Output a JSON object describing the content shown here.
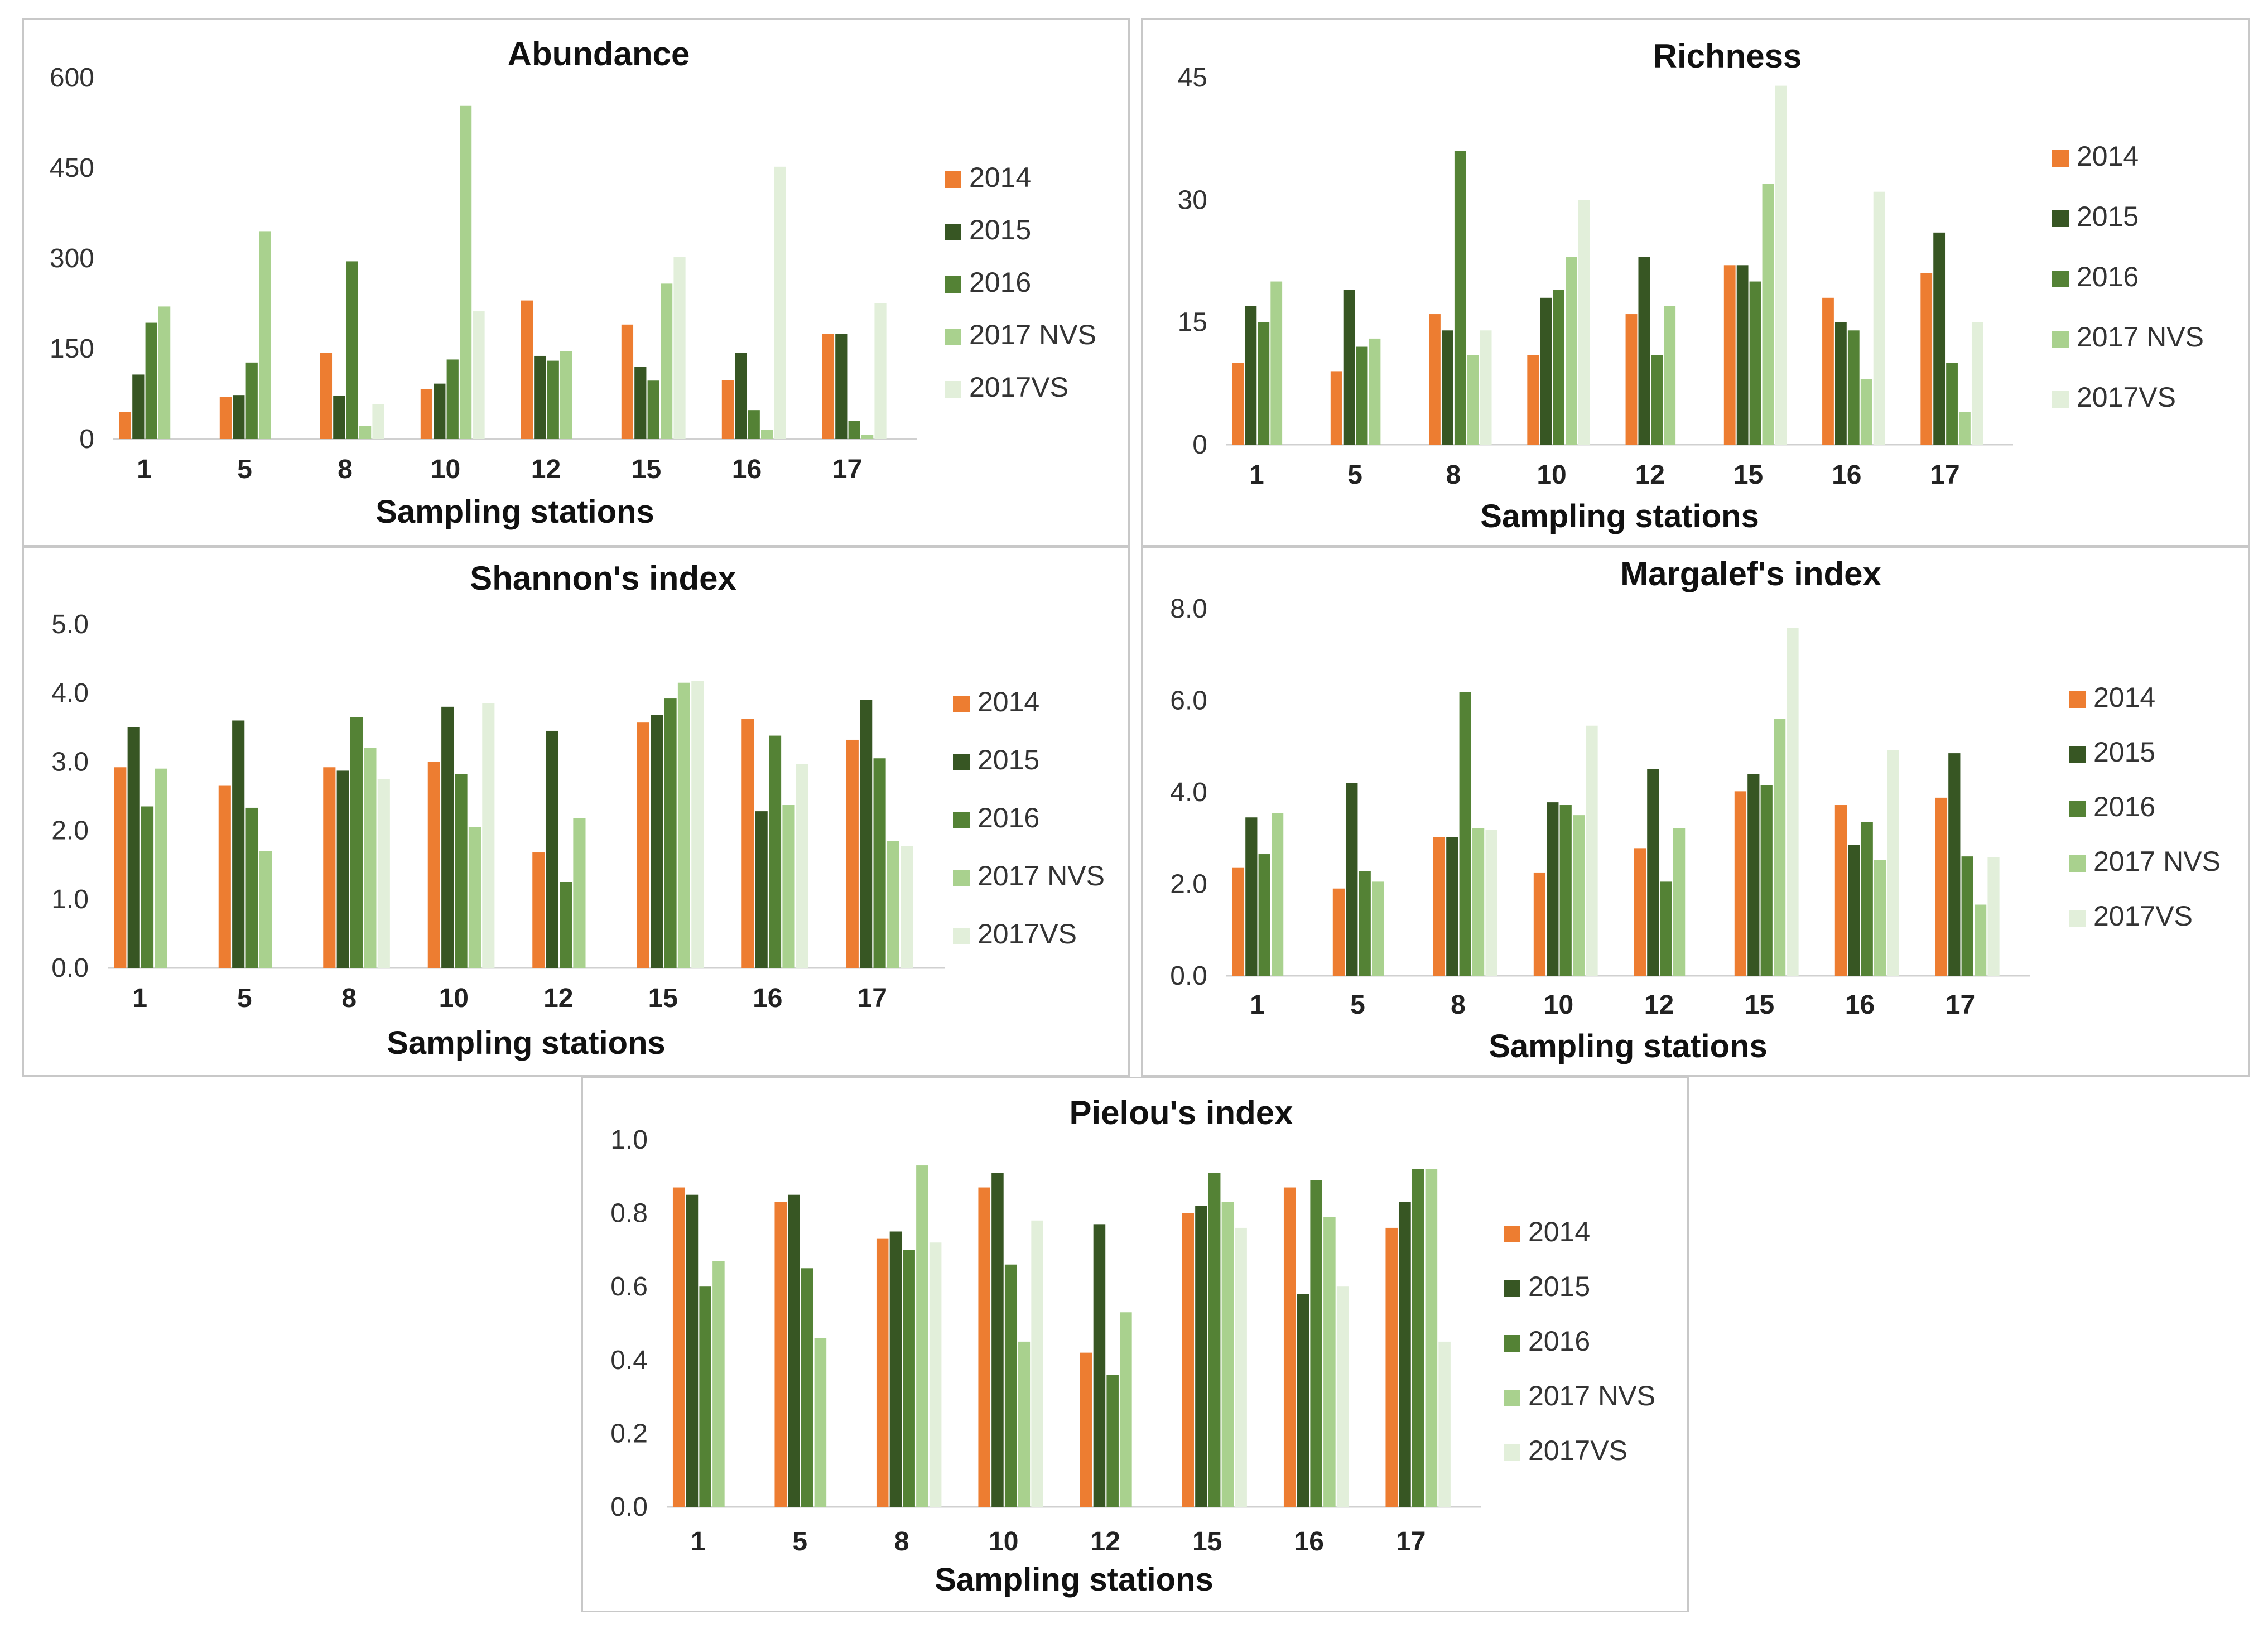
{
  "colors": {
    "2014": "#ED7D31",
    "2015": "#375623",
    "2016": "#548235",
    "2017 NVS": "#A9D18E",
    "2017VS": "#E2EFDA",
    "axis": "#d0d0d0"
  },
  "chart_data": [
    {
      "type": "bar",
      "title": "Abundance",
      "xlabel": "Sampling stations",
      "ylabel": "",
      "categories": [
        "1",
        "5",
        "8",
        "10",
        "12",
        "15",
        "16",
        "17"
      ],
      "yticks": [
        "0",
        "150",
        "300",
        "450",
        "600"
      ],
      "ylim": [
        0,
        600
      ],
      "legend_position": "right",
      "series": [
        {
          "name": "2014",
          "color_key": "2014",
          "values": [
            45,
            70,
            143,
            83,
            230,
            190,
            98,
            175
          ]
        },
        {
          "name": "2015",
          "color_key": "2015",
          "values": [
            107,
            73,
            72,
            92,
            138,
            120,
            143,
            175
          ]
        },
        {
          "name": "2016",
          "color_key": "2016",
          "values": [
            193,
            127,
            295,
            132,
            130,
            97,
            48,
            30
          ]
        },
        {
          "name": "2017 NVS",
          "color_key": "2017 NVS",
          "values": [
            220,
            345,
            22,
            553,
            146,
            258,
            15,
            7
          ]
        },
        {
          "name": "2017VS",
          "color_key": "2017VS",
          "values": [
            null,
            null,
            58,
            212,
            null,
            302,
            452,
            225
          ]
        }
      ]
    },
    {
      "type": "bar",
      "title": "Richness",
      "xlabel": "Sampling stations",
      "ylabel": "",
      "categories": [
        "1",
        "5",
        "8",
        "10",
        "12",
        "15",
        "16",
        "17"
      ],
      "yticks": [
        "0",
        "15",
        "30",
        "45"
      ],
      "ylim": [
        0,
        45
      ],
      "legend_position": "right",
      "series": [
        {
          "name": "2014",
          "color_key": "2014",
          "values": [
            10,
            9,
            16,
            11,
            16,
            22,
            18,
            21
          ]
        },
        {
          "name": "2015",
          "color_key": "2015",
          "values": [
            17,
            19,
            14,
            18,
            23,
            22,
            15,
            26
          ]
        },
        {
          "name": "2016",
          "color_key": "2016",
          "values": [
            15,
            12,
            36,
            19,
            11,
            20,
            14,
            10
          ]
        },
        {
          "name": "2017 NVS",
          "color_key": "2017 NVS",
          "values": [
            20,
            13,
            11,
            23,
            17,
            32,
            8,
            4
          ]
        },
        {
          "name": "2017VS",
          "color_key": "2017VS",
          "values": [
            null,
            null,
            14,
            30,
            null,
            44,
            31,
            15
          ]
        }
      ]
    },
    {
      "type": "bar",
      "title": "Shannon's index",
      "xlabel": "Sampling stations",
      "ylabel": "",
      "categories": [
        "1",
        "5",
        "8",
        "10",
        "12",
        "15",
        "16",
        "17"
      ],
      "yticks": [
        "0.0",
        "1.0",
        "2.0",
        "3.0",
        "4.0",
        "5.0"
      ],
      "ylim": [
        0,
        5
      ],
      "legend_position": "right",
      "series": [
        {
          "name": "2014",
          "color_key": "2014",
          "values": [
            2.92,
            2.65,
            2.92,
            3.0,
            1.68,
            3.57,
            3.62,
            3.32
          ]
        },
        {
          "name": "2015",
          "color_key": "2015",
          "values": [
            3.5,
            3.6,
            2.87,
            3.8,
            3.45,
            3.68,
            2.28,
            3.9
          ]
        },
        {
          "name": "2016",
          "color_key": "2016",
          "values": [
            2.35,
            2.33,
            3.65,
            2.82,
            1.25,
            3.92,
            3.38,
            3.05
          ]
        },
        {
          "name": "2017 NVS",
          "color_key": "2017 NVS",
          "values": [
            2.9,
            1.7,
            3.2,
            2.05,
            2.18,
            4.15,
            2.37,
            1.85
          ]
        },
        {
          "name": "2017VS",
          "color_key": "2017VS",
          "values": [
            null,
            null,
            2.75,
            3.85,
            null,
            4.18,
            2.97,
            1.77
          ]
        }
      ]
    },
    {
      "type": "bar",
      "title": "Margalef's index",
      "xlabel": "Sampling stations",
      "ylabel": "",
      "categories": [
        "1",
        "5",
        "8",
        "10",
        "12",
        "15",
        "16",
        "17"
      ],
      "yticks": [
        "0.0",
        "2.0",
        "4.0",
        "6.0",
        "8.0"
      ],
      "ylim": [
        0,
        8
      ],
      "legend_position": "right",
      "series": [
        {
          "name": "2014",
          "color_key": "2014",
          "values": [
            2.35,
            1.9,
            3.02,
            2.25,
            2.78,
            4.02,
            3.72,
            3.88
          ]
        },
        {
          "name": "2015",
          "color_key": "2015",
          "values": [
            3.45,
            4.2,
            3.02,
            3.78,
            4.5,
            4.4,
            2.85,
            4.85
          ]
        },
        {
          "name": "2016",
          "color_key": "2016",
          "values": [
            2.65,
            2.28,
            6.18,
            3.72,
            2.05,
            4.15,
            3.35,
            2.6
          ]
        },
        {
          "name": "2017 NVS",
          "color_key": "2017 NVS",
          "values": [
            3.55,
            2.05,
            3.22,
            3.5,
            3.22,
            5.6,
            2.52,
            1.55
          ]
        },
        {
          "name": "2017VS",
          "color_key": "2017VS",
          "values": [
            null,
            null,
            3.18,
            5.45,
            null,
            7.58,
            4.92,
            2.58
          ]
        }
      ]
    },
    {
      "type": "bar",
      "title": "Pielou's index",
      "xlabel": "Sampling stations",
      "ylabel": "",
      "categories": [
        "1",
        "5",
        "8",
        "10",
        "12",
        "15",
        "16",
        "17"
      ],
      "yticks": [
        "0.0",
        "0.2",
        "0.4",
        "0.6",
        "0.8",
        "1.0"
      ],
      "ylim": [
        0,
        1
      ],
      "legend_position": "right",
      "series": [
        {
          "name": "2014",
          "color_key": "2014",
          "values": [
            0.87,
            0.83,
            0.73,
            0.87,
            0.42,
            0.8,
            0.87,
            0.76
          ]
        },
        {
          "name": "2015",
          "color_key": "2015",
          "values": [
            0.85,
            0.85,
            0.75,
            0.91,
            0.77,
            0.82,
            0.58,
            0.83
          ]
        },
        {
          "name": "2016",
          "color_key": "2016",
          "values": [
            0.6,
            0.65,
            0.7,
            0.66,
            0.36,
            0.91,
            0.89,
            0.92
          ]
        },
        {
          "name": "2017 NVS",
          "color_key": "2017 NVS",
          "values": [
            0.67,
            0.46,
            0.93,
            0.45,
            0.53,
            0.83,
            0.79,
            0.92
          ]
        },
        {
          "name": "2017VS",
          "color_key": "2017VS",
          "values": [
            null,
            null,
            0.72,
            0.78,
            null,
            0.76,
            0.6,
            0.45
          ]
        }
      ]
    }
  ]
}
